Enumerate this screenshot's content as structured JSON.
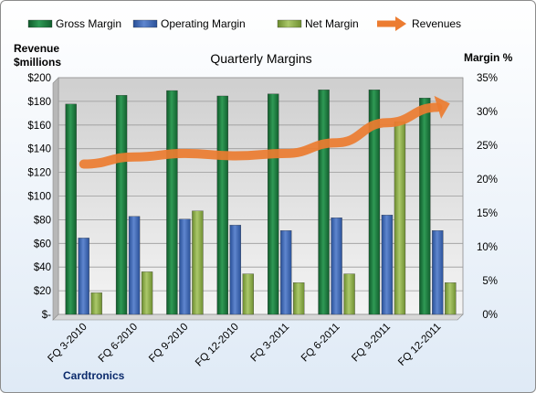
{
  "chart_data": {
    "type": "bar",
    "title": "Quarterly Margins",
    "company": "Cardtronics",
    "y_left_label_line1": "Revenue",
    "y_left_label_line2": "$millions",
    "y_right_label": "Margin %",
    "y_left_range": [
      0,
      200
    ],
    "y_left_ticks": [
      "$-",
      "$20",
      "$40",
      "$60",
      "$80",
      "$100",
      "$120",
      "$140",
      "$160",
      "$180",
      "$200"
    ],
    "y_right_range": [
      0,
      35
    ],
    "y_right_ticks": [
      "0%",
      "5%",
      "10%",
      "15%",
      "20%",
      "25%",
      "30%",
      "35%"
    ],
    "categories": [
      "FQ 3-2010",
      "FQ 6-2010",
      "FQ 9-2010",
      "FQ 12-2010",
      "FQ 3-2011",
      "FQ 6-2011",
      "FQ 9-2011",
      "FQ 12-2011"
    ],
    "series": [
      {
        "name": "Gross Margin",
        "axis": "right",
        "color": "#1e7a3c",
        "values": [
          31.1,
          32.4,
          33.1,
          32.3,
          32.6,
          33.2,
          33.2,
          32.0
        ]
      },
      {
        "name": "Operating Margin",
        "axis": "right",
        "color": "#3d68b5",
        "values": [
          11.3,
          14.5,
          14.1,
          13.2,
          12.4,
          14.3,
          14.7,
          12.4
        ]
      },
      {
        "name": "Net Margin",
        "axis": "right",
        "color": "#8fb04a",
        "values": [
          3.2,
          6.3,
          15.3,
          6.0,
          4.7,
          6.0,
          28.5,
          4.7
        ]
      },
      {
        "name": "Revenues",
        "axis": "left",
        "type": "line",
        "color": "#ec7c30",
        "values": [
          127,
          133,
          136,
          134,
          136,
          145,
          162,
          175
        ]
      }
    ],
    "grid": true,
    "legend_position": "top"
  }
}
